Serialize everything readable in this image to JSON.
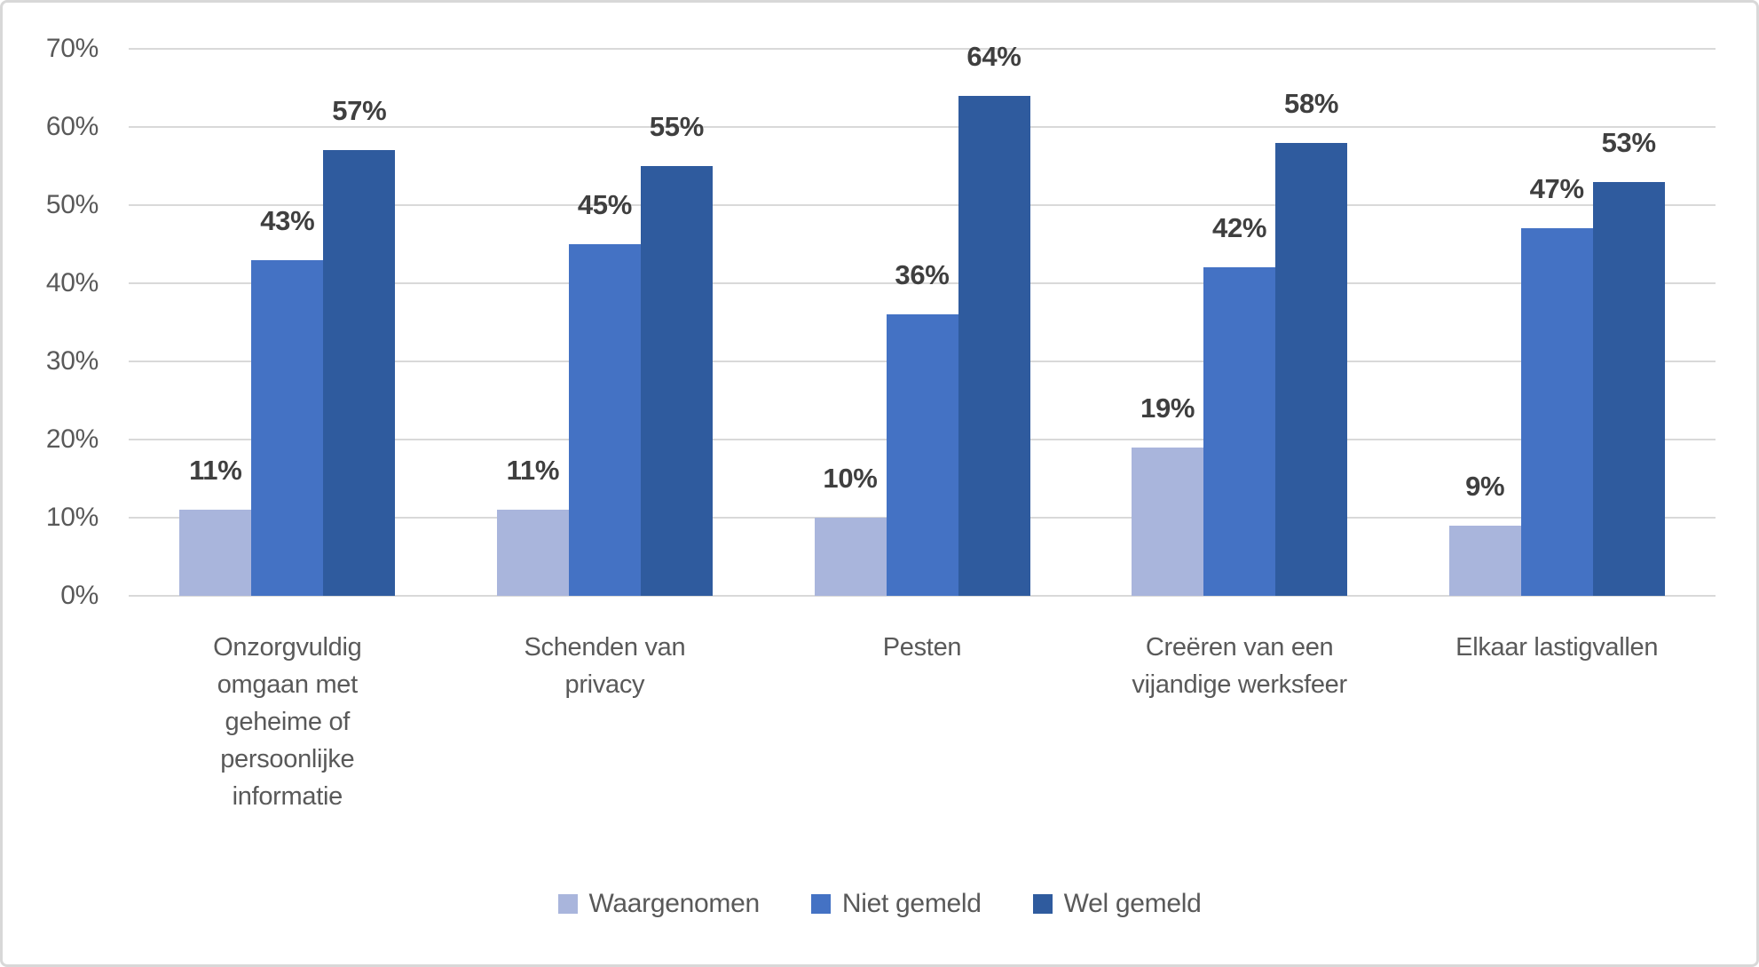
{
  "chart_data": {
    "type": "bar",
    "title": "",
    "xlabel": "",
    "ylabel": "",
    "categories": [
      "Onzorgvuldig\nomgaan met\ngeheime of\npersoonlijke\ninformatie",
      "Schenden van\nprivacy",
      "Pesten",
      "Creëren van een\nvijandige werksfeer",
      "Elkaar lastigvallen"
    ],
    "series": [
      {
        "name": "Waargenomen",
        "color": "#a9b5dc",
        "values": [
          11,
          11,
          10,
          19,
          9
        ],
        "value_labels": [
          "11%",
          "11%",
          "10%",
          "19%",
          "9%"
        ]
      },
      {
        "name": "Niet gemeld",
        "color": "#4472c4",
        "values": [
          43,
          45,
          36,
          42,
          47
        ],
        "value_labels": [
          "43%",
          "45%",
          "36%",
          "42%",
          "47%"
        ]
      },
      {
        "name": "Wel gemeld",
        "color": "#2f5b9e",
        "values": [
          57,
          55,
          64,
          58,
          53
        ],
        "value_labels": [
          "57%",
          "55%",
          "64%",
          "58%",
          "53%"
        ]
      }
    ],
    "y_axis": {
      "min": 0,
      "max": 70,
      "step": 10,
      "tick_labels": [
        "0%",
        "10%",
        "20%",
        "30%",
        "40%",
        "50%",
        "60%",
        "70%"
      ]
    },
    "grid": true,
    "legend_position": "bottom"
  },
  "style": {
    "gridline_color": "#d9d9d9",
    "border_color": "#d8d8d8",
    "axis_text_color": "#595959",
    "data_label_color": "#3f3f3f",
    "background": "#ffffff"
  }
}
